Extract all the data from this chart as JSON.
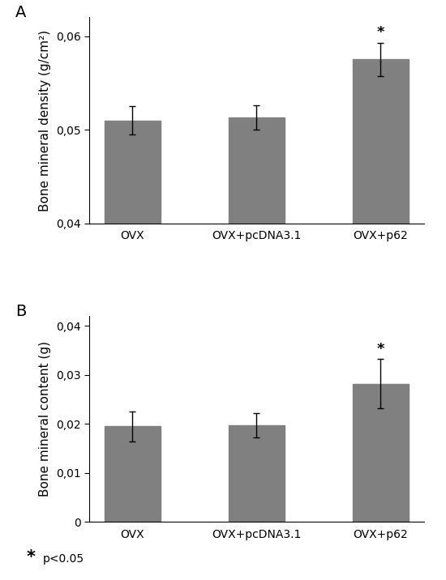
{
  "panel_A": {
    "label": "A",
    "categories": [
      "OVX",
      "OVX+pcDNA3.1",
      "OVX+p62"
    ],
    "values": [
      0.051,
      0.0513,
      0.0575
    ],
    "errors": [
      0.0015,
      0.0013,
      0.0018
    ],
    "ylabel": "Bone mineral density (g/cm²)",
    "ylim": [
      0.04,
      0.062
    ],
    "yticks": [
      0.04,
      0.05,
      0.06
    ],
    "yticklabels": [
      "0,04",
      "0,05",
      "0,06"
    ],
    "bar_color": "#808080",
    "sig_bar": 2,
    "sig_label": "*"
  },
  "panel_B": {
    "label": "B",
    "categories": [
      "OVX",
      "OVX+pcDNA3.1",
      "OVX+p62"
    ],
    "values": [
      0.0195,
      0.0197,
      0.0282
    ],
    "errors": [
      0.003,
      0.0025,
      0.005
    ],
    "ylabel": "Bone mineral content (g)",
    "ylim": [
      0,
      0.042
    ],
    "yticks": [
      0,
      0.01,
      0.02,
      0.03,
      0.04
    ],
    "yticklabels": [
      "0",
      "0,01",
      "0,02",
      "0,03",
      "0,04"
    ],
    "bar_color": "#808080",
    "sig_bar": 2,
    "sig_label": "*"
  },
  "background_color": "#ffffff",
  "bar_width": 0.45,
  "capsize": 3,
  "error_color": "#000000",
  "elinewidth": 1.0,
  "label_fontsize": 11,
  "tick_fontsize": 10,
  "panel_label_fontsize": 14,
  "star_fontsize": 13,
  "footnote_star_fontsize": 15,
  "footnote_text_fontsize": 10
}
